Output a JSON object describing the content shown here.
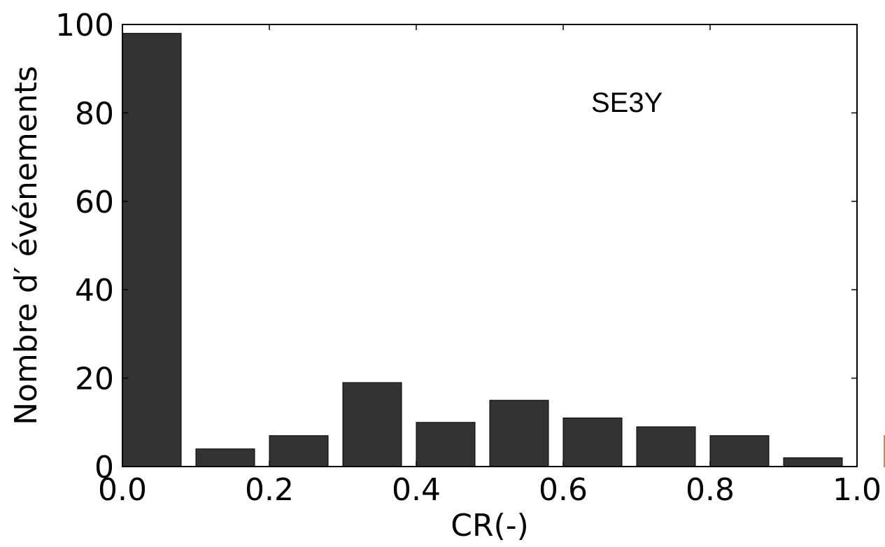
{
  "chart_data": {
    "type": "bar",
    "bin_edges": [
      0.0,
      0.1,
      0.2,
      0.3,
      0.4,
      0.5,
      0.6,
      0.7,
      0.8,
      0.9,
      1.0
    ],
    "values": [
      98,
      4,
      7,
      19,
      10,
      15,
      11,
      9,
      7,
      2
    ],
    "xlabel": "CR(-)",
    "ylabel": "Nombre d′ événements",
    "xlim": [
      0.0,
      1.0
    ],
    "ylim": [
      0,
      100
    ],
    "xticks": [
      0.0,
      0.2,
      0.4,
      0.6,
      0.8,
      1.0
    ],
    "xtick_labels": [
      "0.0",
      "0.2",
      "0.4",
      "0.6",
      "0.8",
      "1.0"
    ],
    "yticks": [
      0,
      20,
      40,
      60,
      80,
      100
    ],
    "ytick_labels": [
      "0",
      "20",
      "40",
      "60",
      "80",
      "100"
    ],
    "annotation": "SE3Y",
    "grid": false,
    "bar_color": "#333333",
    "edge_color": "#000000"
  }
}
